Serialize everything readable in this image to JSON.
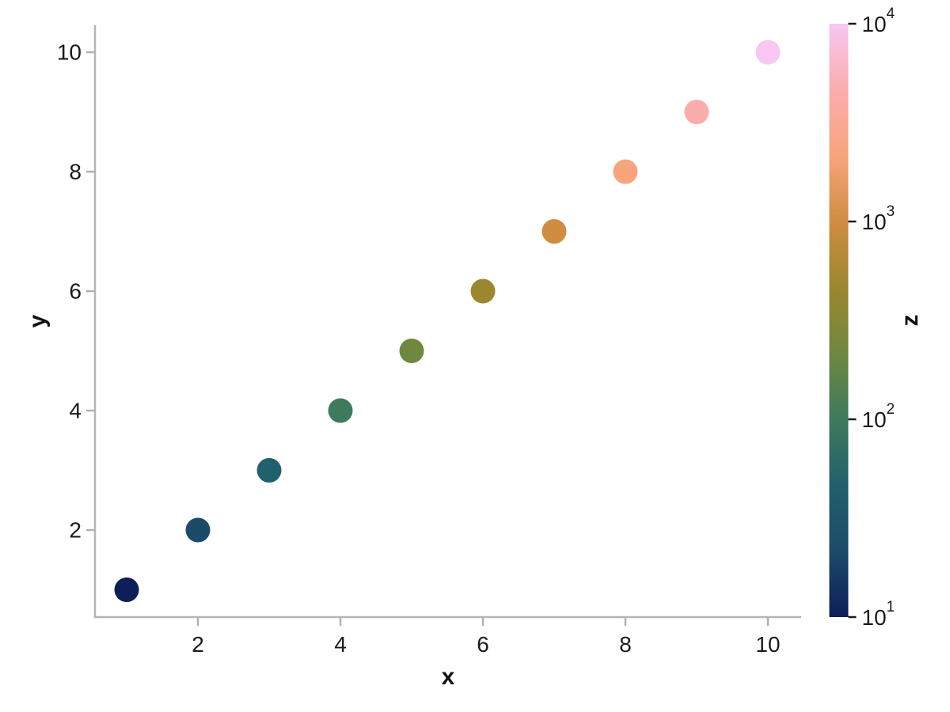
{
  "figure": {
    "background": "#ffffff",
    "spine_color": "#b5b5b5",
    "tick_color": "#b0b0b0",
    "text_color": "#1a1a1a",
    "colorbar_tick_color": "#1a1a1a"
  },
  "chart_data": {
    "type": "scatter",
    "title": "",
    "xlabel": "x",
    "ylabel": "y",
    "x": [
      1,
      2,
      3,
      4,
      5,
      6,
      7,
      8,
      9,
      10
    ],
    "y": [
      1,
      2,
      3,
      4,
      5,
      6,
      7,
      8,
      9,
      10
    ],
    "z_approx": [
      10,
      21.5,
      46.4,
      100,
      215,
      464,
      1000,
      2154,
      4642,
      10000
    ],
    "point_colors": [
      "#0d1e59",
      "#1c4b6a",
      "#21606d",
      "#3e7a5c",
      "#6f8840",
      "#9c872e",
      "#d08d42",
      "#f8a47c",
      "#fbadae",
      "#f8c7f3"
    ],
    "marker_diameter_px": 31,
    "xticks": [
      2,
      4,
      6,
      8,
      10
    ],
    "yticks": [
      2,
      4,
      6,
      8,
      10
    ],
    "xlim": [
      0.56,
      10.47
    ],
    "ylim": [
      0.54,
      10.46
    ],
    "grid": false,
    "legend": false,
    "colorbar": {
      "label": "z",
      "scale": "log",
      "tick_base": "10",
      "tick_exponents": [
        1,
        2,
        3,
        4
      ],
      "range_exponents": [
        1,
        4
      ],
      "gradient_bottom_to_top": [
        "#0d1e59",
        "#1c4b6a",
        "#21606d",
        "#3e7a5c",
        "#6f8840",
        "#9c872e",
        "#d08d42",
        "#f8a47c",
        "#fbadae",
        "#f8c7f3"
      ]
    }
  }
}
